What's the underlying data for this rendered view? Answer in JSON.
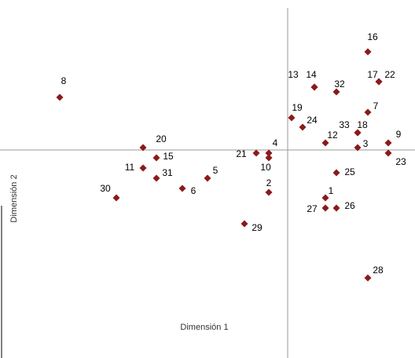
{
  "chart_data": {
    "type": "scatter",
    "x_label": "Dimensión 1",
    "y_label": "Dimensión 2",
    "xlim": [
      -7.32,
      3.24
    ],
    "ylim": [
      -5.3,
      3.62
    ],
    "color": "#8b1a1a",
    "labels": [
      "1",
      "2",
      "3",
      "4",
      "5",
      "6",
      "7",
      "8",
      "9",
      "10",
      "11",
      "12",
      "13",
      "14",
      "15",
      "16",
      "17",
      "18",
      "19",
      "20",
      "21",
      "22",
      "23",
      "24",
      "25",
      "26",
      "27",
      "28",
      "29",
      "30",
      "31",
      "32",
      "33"
    ],
    "x": [
      0.96,
      -0.48,
      1.78,
      -0.48,
      -2.04,
      -2.68,
      2.04,
      -5.8,
      2.56,
      -0.48,
      -3.68,
      0.96,
      0.68,
      0.68,
      -3.34,
      2.04,
      2.32,
      1.78,
      0.1,
      -3.68,
      -0.8,
      2.32,
      2.56,
      0.38,
      1.24,
      1.24,
      0.96,
      2.04,
      -1.1,
      -4.36,
      -3.34,
      1.24,
      1.78
    ],
    "y": [
      -1.22,
      -1.08,
      0.06,
      -0.08,
      -0.72,
      -0.98,
      0.96,
      1.34,
      0.18,
      -0.2,
      -0.46,
      0.18,
      1.6,
      1.6,
      -0.2,
      2.5,
      1.74,
      0.44,
      0.82,
      0.06,
      -0.08,
      1.74,
      -0.08,
      0.58,
      -0.58,
      -1.48,
      -1.48,
      -3.26,
      -1.88,
      -1.22,
      -0.72,
      1.48,
      0.44
    ]
  }
}
